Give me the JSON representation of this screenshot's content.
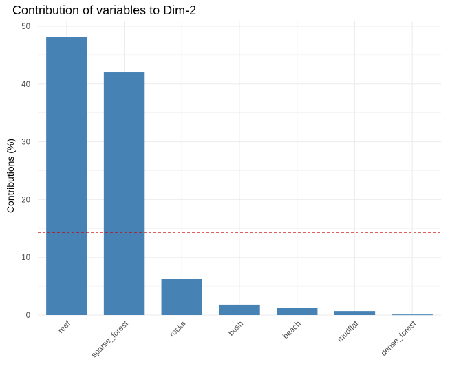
{
  "chart_data": {
    "type": "bar",
    "title": "Contribution of variables to Dim-2",
    "xlabel": "",
    "ylabel": "Contributions (%)",
    "categories": [
      "reef",
      "sparse_forest",
      "rocks",
      "bush",
      "beach",
      "mudflat",
      "dense_forest"
    ],
    "values": [
      48.2,
      42.0,
      6.3,
      1.8,
      1.3,
      0.7,
      0.1
    ],
    "ylim": [
      0,
      50
    ],
    "yticks": [
      0,
      10,
      20,
      30,
      40,
      50
    ],
    "reference_line": 14.3,
    "grid": true,
    "bar_color": "#4682B4",
    "reference_line_color": "#cc0000"
  }
}
